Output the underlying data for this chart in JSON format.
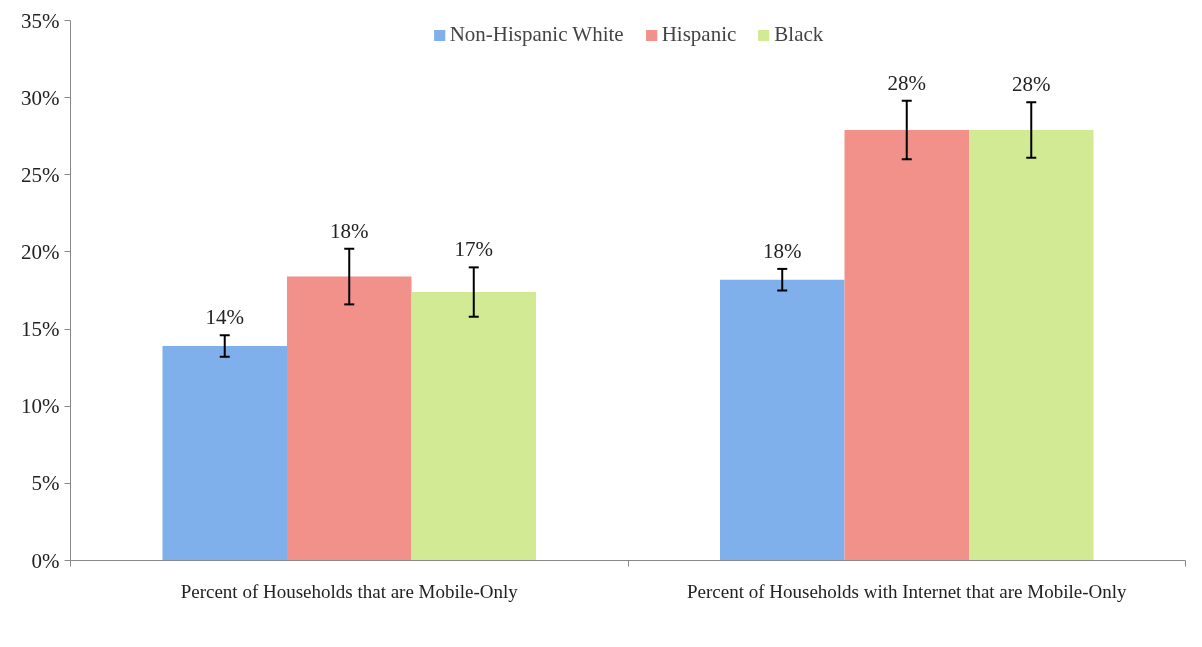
{
  "chart_data": {
    "type": "bar",
    "categories": [
      "Percent of Households that are Mobile-Only",
      "Percent of Households with Internet that are Mobile-Only"
    ],
    "series": [
      {
        "name": "Non-Hispanic White",
        "color": "#7fb0ec",
        "values": [
          13.9,
          18.2
        ],
        "errors": [
          0.7,
          0.7
        ],
        "value_labels": [
          "14%",
          "18%"
        ]
      },
      {
        "name": "Hispanic",
        "color": "#f2908a",
        "values": [
          18.4,
          27.9
        ],
        "errors": [
          1.8,
          1.9
        ],
        "value_labels": [
          "18%",
          "28%"
        ]
      },
      {
        "name": "Black",
        "color": "#d2ea94",
        "values": [
          17.4,
          27.9
        ],
        "errors": [
          1.6,
          1.8
        ],
        "value_labels": [
          "17%",
          "28%"
        ]
      }
    ],
    "ylim": [
      0,
      35
    ],
    "yticks": [
      {
        "value": 0,
        "label": "0%"
      },
      {
        "value": 5,
        "label": "5%"
      },
      {
        "value": 10,
        "label": "10%"
      },
      {
        "value": 15,
        "label": "15%"
      },
      {
        "value": 20,
        "label": "20%"
      },
      {
        "value": 25,
        "label": "25%"
      },
      {
        "value": 30,
        "label": "30%"
      },
      {
        "value": 35,
        "label": "35%"
      }
    ],
    "grid": false,
    "legend": "top"
  }
}
